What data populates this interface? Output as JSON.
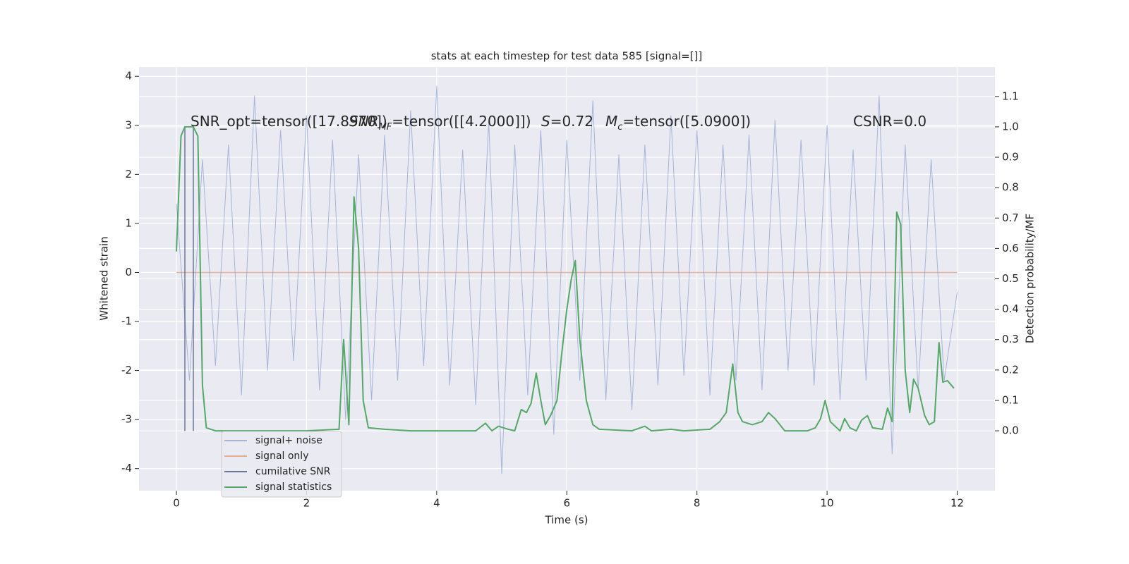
{
  "chart_data": {
    "type": "line",
    "title": "stats at each timestep for test data 585 [signal=[]]",
    "xlabel": "Time (s)",
    "ylabel": "Whitened strain",
    "y2label": "Detection probability/MF",
    "xlim": [
      -0.575,
      12.58
    ],
    "xticks": [
      0,
      2,
      4,
      6,
      8,
      10,
      12
    ],
    "ylim": [
      -4.45,
      4.19
    ],
    "yticks": [
      -4,
      -3,
      -2,
      -1,
      0,
      1,
      2,
      3,
      4
    ],
    "y2lim": [
      -0.197,
      1.197
    ],
    "y2ticks": [
      {
        "value": 0,
        "label": "0.0"
      },
      0.1,
      0.2,
      0.3,
      0.4,
      0.5,
      0.6,
      0.7,
      0.8,
      0.9,
      {
        "value": 1,
        "label": "1.0"
      },
      1.1
    ],
    "grid": true,
    "legend": "lower left",
    "annotations": [
      [
        "SNR_opt=tensor([17.8970])"
      ],
      [
        "SNR",
        "MF",
        "=tensor([[4.2000]])"
      ],
      [
        "S",
        "=0.72"
      ],
      [
        "M",
        "c",
        "=tensor([5.0900])"
      ],
      [
        "CSNR=0.0"
      ]
    ],
    "series": [
      {
        "name": "signal+ noise",
        "color": "#8fa3cf",
        "x": [
          0,
          0.2,
          0.4,
          0.6,
          0.8,
          1,
          1.2,
          1.4,
          1.6,
          1.8,
          2,
          2.2,
          2.4,
          2.6,
          2.8,
          3,
          3.2,
          3.4,
          3.6,
          3.8,
          4,
          4.2,
          4.4,
          4.6,
          4.8,
          5,
          5.2,
          5.4,
          5.6,
          5.8,
          6,
          6.2,
          6.4,
          6.6,
          6.8,
          7,
          7.2,
          7.4,
          7.6,
          7.8,
          8,
          8.2,
          8.4,
          8.6,
          8.8,
          9,
          9.2,
          9.4,
          9.6,
          9.8,
          10,
          10.2,
          10.4,
          10.6,
          10.8,
          11,
          11.2,
          11.4,
          11.6,
          11.8,
          12
        ],
        "values": [
          1.4,
          -2.2,
          2.3,
          -1.9,
          2.6,
          -2.5,
          3.6,
          -2.0,
          2.9,
          -1.8,
          3.2,
          -2.4,
          2.7,
          -3.0,
          2.4,
          -2.6,
          2.8,
          -2.2,
          3.3,
          -1.9,
          3.8,
          -2.3,
          2.5,
          -2.7,
          3.1,
          -4.1,
          2.6,
          -2.5,
          2.9,
          -3.3,
          2.7,
          -2.2,
          3.5,
          -2.6,
          2.4,
          -2.8,
          2.6,
          -2.3,
          3.2,
          -2.1,
          2.9,
          -2.5,
          2.6,
          -2.2,
          2.8,
          -2.4,
          3.1,
          -2.0,
          2.7,
          -2.3,
          3.0,
          -2.6,
          2.5,
          -2.2,
          3.6,
          -3.7,
          2.6,
          -2.4,
          2.3,
          -2.2,
          -0.4
        ]
      },
      {
        "name": "signal only",
        "color": "#dd8452",
        "x": [
          0,
          12
        ],
        "values": [
          0,
          0
        ]
      },
      {
        "name": "cumilative SNR",
        "color": "#4c5a80",
        "axis": "y2",
        "x": [
          0.13,
          0.13,
          0.2,
          0.26,
          0.26
        ],
        "values": [
          0,
          1,
          null,
          0,
          1
        ]
      },
      {
        "name": "signal statistics",
        "color": "#55a868",
        "axis": "y2",
        "x": [
          0,
          0.07,
          0.13,
          0.26,
          0.33,
          0.4,
          0.46,
          0.6,
          1.0,
          1.5,
          2.0,
          2.5,
          2.57,
          2.65,
          2.73,
          2.8,
          2.87,
          2.95,
          3.2,
          3.6,
          4.0,
          4.4,
          4.6,
          4.75,
          4.85,
          4.95,
          5.1,
          5.2,
          5.3,
          5.38,
          5.45,
          5.53,
          5.6,
          5.67,
          5.75,
          5.85,
          5.92,
          6.0,
          6.07,
          6.13,
          6.2,
          6.3,
          6.4,
          6.5,
          7.0,
          7.2,
          7.3,
          7.6,
          7.8,
          8.2,
          8.35,
          8.45,
          8.55,
          8.63,
          8.7,
          8.85,
          9.0,
          9.1,
          9.2,
          9.35,
          9.7,
          9.82,
          9.9,
          9.97,
          10.05,
          10.15,
          10.2,
          10.27,
          10.35,
          10.45,
          10.53,
          10.62,
          10.7,
          10.85,
          10.93,
          11.0,
          11.07,
          11.13,
          11.2,
          11.27,
          11.33,
          11.4,
          11.5,
          11.57,
          11.65,
          11.72,
          11.78,
          11.85,
          11.95
        ],
        "values": [
          0.59,
          0.97,
          1.0,
          1.0,
          0.97,
          0.15,
          0.01,
          0.0,
          0.0,
          0.0,
          0.0,
          0.005,
          0.3,
          0.02,
          0.77,
          0.6,
          0.1,
          0.01,
          0.005,
          0.0,
          0.0,
          0.0,
          0.0,
          0.025,
          0.0,
          0.015,
          0.005,
          0.0,
          0.07,
          0.06,
          0.09,
          0.19,
          0.1,
          0.02,
          0.05,
          0.1,
          0.25,
          0.4,
          0.5,
          0.56,
          0.3,
          0.1,
          0.02,
          0.005,
          0.0,
          0.015,
          0.0,
          0.005,
          0.0,
          0.005,
          0.03,
          0.06,
          0.22,
          0.06,
          0.03,
          0.02,
          0.03,
          0.06,
          0.04,
          0.0,
          0.0,
          0.01,
          0.04,
          0.1,
          0.03,
          0.01,
          0.0,
          0.04,
          0.01,
          0.0,
          0.035,
          0.05,
          0.01,
          0.005,
          0.075,
          0.03,
          0.72,
          0.68,
          0.2,
          0.06,
          0.17,
          0.14,
          0.05,
          0.02,
          0.03,
          0.29,
          0.16,
          0.165,
          0.14
        ]
      }
    ]
  }
}
